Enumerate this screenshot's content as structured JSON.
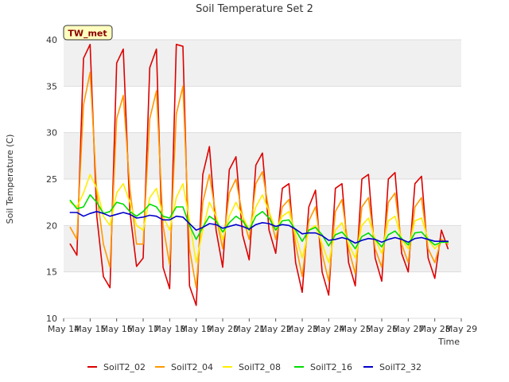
{
  "chart_data": {
    "type": "line",
    "title": "Soil Temperature Set 2",
    "xlabel": "Time",
    "ylabel": "Soil Temperature (C)",
    "site_tag": "TW_met",
    "xlim": [
      "2024-05-14",
      "2024-05-29"
    ],
    "ylim": [
      10,
      40
    ],
    "x_ticks": [
      {
        "date": "2024-05-14",
        "label": "May 14"
      },
      {
        "date": "2024-05-15",
        "label": "May 15"
      },
      {
        "date": "2024-05-16",
        "label": "May 16"
      },
      {
        "date": "2024-05-17",
        "label": "May 17"
      },
      {
        "date": "2024-05-18",
        "label": "May 18"
      },
      {
        "date": "2024-05-19",
        "label": "May 19"
      },
      {
        "date": "2024-05-20",
        "label": "May 20"
      },
      {
        "date": "2024-05-21",
        "label": "May 21"
      },
      {
        "date": "2024-05-22",
        "label": "May 22"
      },
      {
        "date": "2024-05-23",
        "label": "May 23"
      },
      {
        "date": "2024-05-24",
        "label": "May 24"
      },
      {
        "date": "2024-05-25",
        "label": "May 25"
      },
      {
        "date": "2024-05-26",
        "label": "May 26"
      },
      {
        "date": "2024-05-27",
        "label": "May 27"
      },
      {
        "date": "2024-05-28",
        "label": "May 28"
      },
      {
        "date": "2024-05-29",
        "label": "May 29"
      }
    ],
    "y_ticks": [
      10,
      15,
      20,
      25,
      30,
      35,
      40
    ],
    "grid": true,
    "background_bands": true,
    "legend_position": "bottom-center",
    "x": [
      "2024-05-14 06:00",
      "2024-05-14 12:00",
      "2024-05-14 18:00",
      "2024-05-15 00:00",
      "2024-05-15 06:00",
      "2024-05-15 12:00",
      "2024-05-15 18:00",
      "2024-05-16 00:00",
      "2024-05-16 06:00",
      "2024-05-16 12:00",
      "2024-05-16 18:00",
      "2024-05-17 00:00",
      "2024-05-17 06:00",
      "2024-05-17 12:00",
      "2024-05-17 18:00",
      "2024-05-18 00:00",
      "2024-05-18 06:00",
      "2024-05-18 12:00",
      "2024-05-18 18:00",
      "2024-05-19 00:00",
      "2024-05-19 06:00",
      "2024-05-19 12:00",
      "2024-05-19 18:00",
      "2024-05-20 00:00",
      "2024-05-20 06:00",
      "2024-05-20 12:00",
      "2024-05-20 18:00",
      "2024-05-21 00:00",
      "2024-05-21 06:00",
      "2024-05-21 12:00",
      "2024-05-21 18:00",
      "2024-05-22 00:00",
      "2024-05-22 06:00",
      "2024-05-22 12:00",
      "2024-05-22 18:00",
      "2024-05-23 00:00",
      "2024-05-23 06:00",
      "2024-05-23 12:00",
      "2024-05-23 18:00",
      "2024-05-24 00:00",
      "2024-05-24 06:00",
      "2024-05-24 12:00",
      "2024-05-24 18:00",
      "2024-05-25 00:00",
      "2024-05-25 06:00",
      "2024-05-25 12:00",
      "2024-05-25 18:00",
      "2024-05-26 00:00",
      "2024-05-26 06:00",
      "2024-05-26 12:00",
      "2024-05-26 18:00",
      "2024-05-27 00:00",
      "2024-05-27 06:00",
      "2024-05-27 12:00",
      "2024-05-27 18:00",
      "2024-05-28 00:00",
      "2024-05-28 06:00",
      "2024-05-28 12:00"
    ],
    "series": [
      {
        "name": "SoilT2_02",
        "color": "#dd0000",
        "values": [
          18.0,
          16.8,
          38.0,
          39.5,
          21.0,
          14.5,
          13.3,
          37.5,
          39.0,
          21.5,
          15.6,
          16.5,
          37.0,
          39.0,
          15.5,
          13.2,
          39.5,
          39.3,
          13.5,
          11.4,
          25.5,
          28.5,
          19.5,
          15.5,
          26.0,
          27.4,
          19.0,
          16.3,
          26.5,
          27.8,
          19.5,
          17.0,
          24.0,
          24.5,
          16.0,
          12.8,
          22.0,
          23.8,
          15.0,
          12.5,
          24.0,
          24.5,
          16.0,
          13.5,
          25.0,
          25.5,
          16.5,
          14.0,
          25.0,
          25.7,
          17.0,
          15.0,
          24.5,
          25.3,
          16.5,
          14.3,
          19.5,
          17.5
        ]
      },
      {
        "name": "SoilT2_04",
        "color": "#ff9900",
        "values": [
          19.8,
          18.5,
          33.0,
          36.5,
          23.5,
          18.0,
          15.5,
          31.5,
          34.0,
          24.0,
          18.0,
          18.0,
          31.5,
          34.5,
          20.0,
          15.8,
          32.0,
          35.0,
          17.5,
          13.3,
          22.5,
          25.5,
          21.0,
          17.5,
          23.5,
          25.0,
          21.0,
          18.5,
          24.5,
          25.8,
          21.5,
          18.5,
          22.0,
          22.8,
          18.0,
          14.5,
          20.5,
          22.0,
          17.0,
          14.0,
          21.5,
          22.8,
          17.5,
          14.8,
          22.0,
          23.0,
          17.5,
          15.5,
          22.5,
          23.5,
          18.0,
          16.0,
          22.0,
          23.0,
          17.5,
          16.0,
          18.5,
          18.0
        ]
      },
      {
        "name": "SoilT2_08",
        "color": "#ffee00",
        "values": [
          22.5,
          22.0,
          23.5,
          25.5,
          24.0,
          21.0,
          20.0,
          23.5,
          24.5,
          22.5,
          20.0,
          19.5,
          23.0,
          24.0,
          21.0,
          19.5,
          23.0,
          24.5,
          20.5,
          16.0,
          19.5,
          22.5,
          21.0,
          18.5,
          21.0,
          22.5,
          21.0,
          19.5,
          22.0,
          23.3,
          21.5,
          19.5,
          21.0,
          21.5,
          19.0,
          16.5,
          19.5,
          20.0,
          18.0,
          16.0,
          19.5,
          20.3,
          18.0,
          16.5,
          20.0,
          20.8,
          18.5,
          17.0,
          20.5,
          21.0,
          18.5,
          17.5,
          20.5,
          20.8,
          18.5,
          17.5,
          18.3,
          18.2
        ]
      },
      {
        "name": "SoilT2_16",
        "color": "#00dd00",
        "values": [
          22.7,
          21.8,
          22.0,
          23.3,
          22.5,
          21.3,
          21.5,
          22.5,
          22.3,
          21.5,
          21.0,
          21.5,
          22.3,
          22.0,
          21.0,
          20.8,
          22.0,
          22.0,
          20.0,
          18.5,
          19.8,
          21.0,
          20.5,
          19.3,
          20.3,
          21.0,
          20.5,
          19.5,
          21.0,
          21.5,
          20.8,
          19.5,
          20.5,
          20.6,
          19.5,
          18.3,
          19.5,
          19.8,
          19.0,
          17.8,
          19.0,
          19.3,
          18.5,
          17.5,
          18.8,
          19.2,
          18.5,
          17.7,
          19.0,
          19.4,
          18.6,
          17.9,
          19.2,
          19.3,
          18.5,
          17.9,
          18.2,
          18.2
        ]
      },
      {
        "name": "SoilT2_32",
        "color": "#0000cc",
        "values": [
          21.4,
          21.4,
          21.0,
          21.3,
          21.5,
          21.3,
          21.0,
          21.2,
          21.4,
          21.2,
          20.8,
          20.9,
          21.1,
          21.0,
          20.6,
          20.6,
          21.0,
          20.9,
          20.2,
          19.5,
          19.8,
          20.2,
          20.1,
          19.7,
          19.9,
          20.1,
          19.9,
          19.6,
          20.1,
          20.3,
          20.2,
          19.9,
          20.1,
          20.0,
          19.6,
          19.1,
          19.2,
          19.2,
          18.9,
          18.4,
          18.5,
          18.7,
          18.5,
          18.1,
          18.4,
          18.6,
          18.5,
          18.2,
          18.5,
          18.7,
          18.5,
          18.2,
          18.6,
          18.7,
          18.5,
          18.3,
          18.3,
          18.3
        ]
      }
    ]
  }
}
